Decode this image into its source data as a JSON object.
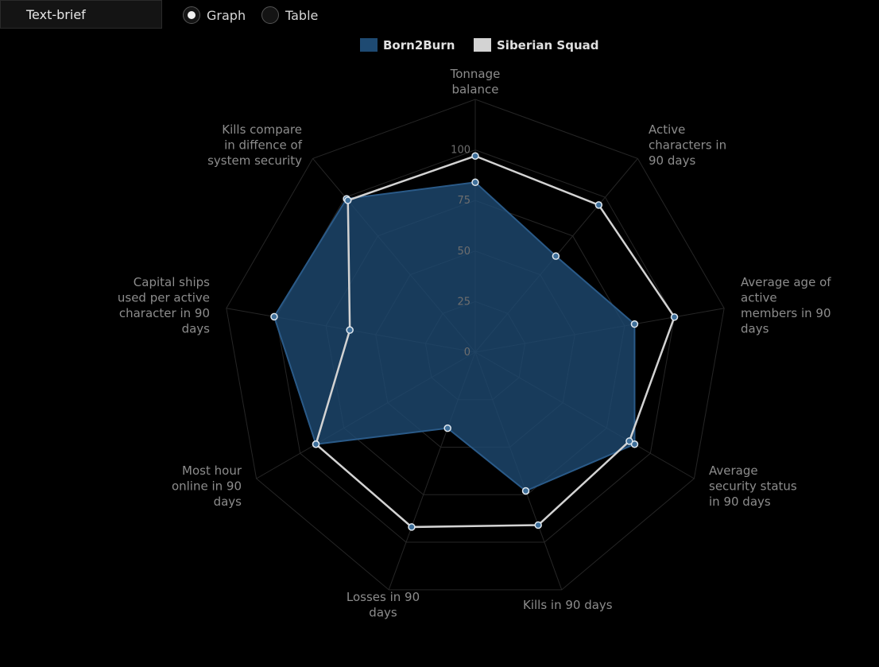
{
  "toolbar": {
    "text_brief_label": "Text-brief",
    "view_options": [
      {
        "label": "Graph",
        "selected": true
      },
      {
        "label": "Table",
        "selected": false
      }
    ]
  },
  "chart_data": {
    "type": "radar",
    "axes": [
      {
        "label": [
          "Tonnage",
          "balance"
        ],
        "anchor": "middle"
      },
      {
        "label": [
          "Active",
          "characters in",
          "90 days"
        ],
        "anchor": "start"
      },
      {
        "label": [
          "Average age of",
          "active",
          "members in 90",
          "days"
        ],
        "anchor": "start"
      },
      {
        "label": [
          "Average",
          "security status",
          "in 90 days"
        ],
        "anchor": "start"
      },
      {
        "label": [
          "Kills in 90 days"
        ],
        "anchor": "start"
      },
      {
        "label": [
          "Losses in 90",
          "days"
        ],
        "anchor": "middle"
      },
      {
        "label": [
          "Most hour",
          "online in 90",
          "days"
        ],
        "anchor": "end"
      },
      {
        "label": [
          "Capital ships",
          "used per active",
          "character in 90",
          "days"
        ],
        "anchor": "end"
      },
      {
        "label": [
          "Kills compare",
          "in diffence of",
          "system security"
        ],
        "anchor": "end"
      }
    ],
    "ticks": [
      "0",
      "25",
      "50",
      "75",
      "100"
    ],
    "range": [
      0,
      125
    ],
    "series": [
      {
        "name": "Born2Burn",
        "color": "#1e4a72",
        "fill": "#1e4a72",
        "fill_opacity": 0.8,
        "values": [
          84,
          62,
          80,
          91,
          73,
          40,
          91,
          101,
          99
        ]
      },
      {
        "name": "Siberian Squad",
        "color": "#d3d3d3",
        "fill": "none",
        "values": [
          97,
          95,
          100,
          88,
          91,
          92,
          91,
          63,
          98
        ]
      }
    ]
  }
}
